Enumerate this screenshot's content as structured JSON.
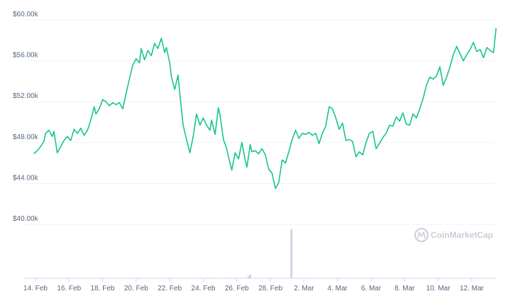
{
  "chart_data": {
    "type": "line",
    "title": "",
    "xlabel": "",
    "ylabel": "",
    "ylim": [
      40000,
      60000
    ],
    "grid": true,
    "line_color": "#16c784",
    "volume_color": "#cfd6e4",
    "watermark": "CoinMarketCap",
    "y_ticks": [
      {
        "value": 60000,
        "label": "$60.00k"
      },
      {
        "value": 56000,
        "label": "$56.00k"
      },
      {
        "value": 52000,
        "label": "$52.00k"
      },
      {
        "value": 48000,
        "label": "$48.00k"
      },
      {
        "value": 44000,
        "label": "$44.00k"
      },
      {
        "value": 40000,
        "label": "$40.00k"
      }
    ],
    "x_ticks": [
      {
        "day": 0,
        "label": "14. Feb"
      },
      {
        "day": 2,
        "label": "16. Feb"
      },
      {
        "day": 4,
        "label": "18. Feb"
      },
      {
        "day": 6,
        "label": "20. Feb"
      },
      {
        "day": 8,
        "label": "22. Feb"
      },
      {
        "day": 10,
        "label": "24. Feb"
      },
      {
        "day": 12,
        "label": "26. Feb"
      },
      {
        "day": 14,
        "label": "28. Feb"
      },
      {
        "day": 16,
        "label": "2. Mar"
      },
      {
        "day": 18,
        "label": "4. Mar"
      },
      {
        "day": 20,
        "label": "6. Mar"
      },
      {
        "day": 22,
        "label": "8. Mar"
      },
      {
        "day": 24,
        "label": "10. Mar"
      },
      {
        "day": 26,
        "label": "12. Mar"
      }
    ],
    "price": [
      [
        -0.1,
        46900
      ],
      [
        0.1,
        47200
      ],
      [
        0.3,
        47600
      ],
      [
        0.5,
        48100
      ],
      [
        0.6,
        48900
      ],
      [
        0.8,
        49200
      ],
      [
        1.0,
        48600
      ],
      [
        1.1,
        49100
      ],
      [
        1.3,
        47000
      ],
      [
        1.5,
        47600
      ],
      [
        1.7,
        48200
      ],
      [
        1.9,
        48600
      ],
      [
        2.1,
        48200
      ],
      [
        2.3,
        49300
      ],
      [
        2.5,
        48900
      ],
      [
        2.7,
        49400
      ],
      [
        2.9,
        48700
      ],
      [
        3.1,
        49200
      ],
      [
        3.3,
        50200
      ],
      [
        3.5,
        51500
      ],
      [
        3.6,
        50800
      ],
      [
        3.8,
        51300
      ],
      [
        4.0,
        52200
      ],
      [
        4.2,
        52000
      ],
      [
        4.4,
        51600
      ],
      [
        4.6,
        51900
      ],
      [
        4.8,
        51700
      ],
      [
        5.0,
        51900
      ],
      [
        5.2,
        51300
      ],
      [
        5.4,
        52800
      ],
      [
        5.6,
        54200
      ],
      [
        5.8,
        55600
      ],
      [
        6.0,
        56200
      ],
      [
        6.2,
        55800
      ],
      [
        6.3,
        57200
      ],
      [
        6.5,
        56100
      ],
      [
        6.7,
        57000
      ],
      [
        6.9,
        56500
      ],
      [
        7.1,
        57700
      ],
      [
        7.3,
        57200
      ],
      [
        7.5,
        58200
      ],
      [
        7.7,
        56800
      ],
      [
        7.8,
        57300
      ],
      [
        8.0,
        55800
      ],
      [
        8.1,
        54400
      ],
      [
        8.3,
        53200
      ],
      [
        8.5,
        54600
      ],
      [
        8.6,
        52800
      ],
      [
        8.8,
        49700
      ],
      [
        9.0,
        48300
      ],
      [
        9.2,
        47000
      ],
      [
        9.4,
        48600
      ],
      [
        9.6,
        50800
      ],
      [
        9.8,
        49700
      ],
      [
        10.0,
        50400
      ],
      [
        10.2,
        49700
      ],
      [
        10.4,
        49200
      ],
      [
        10.5,
        50200
      ],
      [
        10.7,
        48800
      ],
      [
        10.9,
        51400
      ],
      [
        11.0,
        50700
      ],
      [
        11.2,
        48300
      ],
      [
        11.4,
        47400
      ],
      [
        11.5,
        46600
      ],
      [
        11.7,
        45300
      ],
      [
        11.9,
        47000
      ],
      [
        12.1,
        46400
      ],
      [
        12.3,
        48000
      ],
      [
        12.5,
        46300
      ],
      [
        12.6,
        45600
      ],
      [
        12.8,
        47800
      ],
      [
        12.9,
        47100
      ],
      [
        13.1,
        47200
      ],
      [
        13.3,
        46900
      ],
      [
        13.5,
        47400
      ],
      [
        13.7,
        46800
      ],
      [
        13.9,
        45400
      ],
      [
        14.1,
        45000
      ],
      [
        14.3,
        43500
      ],
      [
        14.5,
        44100
      ],
      [
        14.7,
        46300
      ],
      [
        14.9,
        46000
      ],
      [
        15.1,
        47100
      ],
      [
        15.3,
        48300
      ],
      [
        15.5,
        49200
      ],
      [
        15.7,
        48400
      ],
      [
        15.9,
        48900
      ],
      [
        16.1,
        48800
      ],
      [
        16.3,
        49000
      ],
      [
        16.5,
        48700
      ],
      [
        16.7,
        48900
      ],
      [
        16.9,
        47900
      ],
      [
        17.1,
        48900
      ],
      [
        17.3,
        49600
      ],
      [
        17.5,
        51500
      ],
      [
        17.7,
        51300
      ],
      [
        17.9,
        50400
      ],
      [
        18.1,
        49300
      ],
      [
        18.3,
        49900
      ],
      [
        18.5,
        48200
      ],
      [
        18.7,
        48300
      ],
      [
        18.9,
        48100
      ],
      [
        19.1,
        46600
      ],
      [
        19.3,
        47100
      ],
      [
        19.5,
        46800
      ],
      [
        19.7,
        48000
      ],
      [
        19.9,
        48900
      ],
      [
        20.1,
        49100
      ],
      [
        20.3,
        47400
      ],
      [
        20.5,
        47900
      ],
      [
        20.7,
        48500
      ],
      [
        20.9,
        48900
      ],
      [
        21.1,
        49700
      ],
      [
        21.3,
        49600
      ],
      [
        21.5,
        50500
      ],
      [
        21.7,
        50100
      ],
      [
        21.9,
        50900
      ],
      [
        22.1,
        49800
      ],
      [
        22.3,
        49700
      ],
      [
        22.5,
        50800
      ],
      [
        22.7,
        50400
      ],
      [
        22.9,
        51300
      ],
      [
        23.1,
        52300
      ],
      [
        23.3,
        53600
      ],
      [
        23.5,
        54400
      ],
      [
        23.7,
        54200
      ],
      [
        23.9,
        54500
      ],
      [
        24.1,
        55400
      ],
      [
        24.3,
        53600
      ],
      [
        24.5,
        54400
      ],
      [
        24.7,
        55400
      ],
      [
        24.9,
        56600
      ],
      [
        25.1,
        57400
      ],
      [
        25.3,
        56700
      ],
      [
        25.5,
        56000
      ],
      [
        25.7,
        56600
      ],
      [
        25.9,
        57100
      ],
      [
        26.1,
        57800
      ],
      [
        26.3,
        56900
      ],
      [
        26.5,
        57100
      ],
      [
        26.7,
        56300
      ],
      [
        26.9,
        57300
      ],
      [
        27.1,
        57000
      ],
      [
        27.3,
        56800
      ],
      [
        27.45,
        59200
      ]
    ],
    "volume": [
      [
        6.2,
        0.01
      ],
      [
        10.2,
        0.01
      ],
      [
        10.6,
        0.01
      ],
      [
        11.4,
        0.01
      ],
      [
        12.7,
        0.05
      ],
      [
        12.8,
        0.08
      ],
      [
        15.25,
        1.0
      ]
    ]
  }
}
